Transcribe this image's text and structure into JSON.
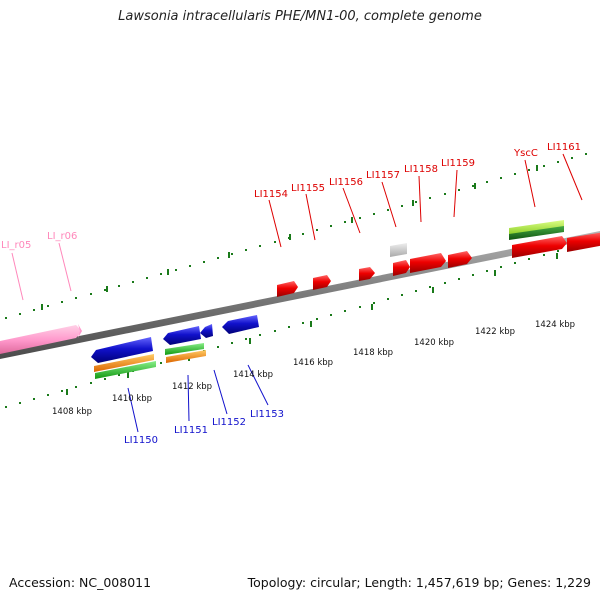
{
  "title": "Lawsonia intracellularis PHE/MN1-00, complete genome",
  "footer": {
    "accession": "Accession: NC_008011",
    "stats": "Topology: circular; Length: 1,457,619 bp; Genes: 1,229"
  },
  "colors": {
    "plus_gene": "#ee0000",
    "minus_gene": "#1111cc",
    "rna": "#ff99cc",
    "tick": "#1a7a1a",
    "backbone": "#888888",
    "orange_feature": "#ff8800",
    "green_feature": "#33cc33",
    "lime_feature": "#aaee44",
    "gray_feature": "#cccccc"
  },
  "scale": {
    "unit": "kbp",
    "labels": [
      {
        "kbp": 1408,
        "text": "1408 kbp"
      },
      {
        "kbp": 1410,
        "text": "1410 kbp"
      },
      {
        "kbp": 1412,
        "text": "1412 kbp"
      },
      {
        "kbp": 1414,
        "text": "1414 kbp"
      },
      {
        "kbp": 1416,
        "text": "1416 kbp"
      },
      {
        "kbp": 1418,
        "text": "1418 kbp"
      },
      {
        "kbp": 1420,
        "text": "1420 kbp"
      },
      {
        "kbp": 1422,
        "text": "1422 kbp"
      },
      {
        "kbp": 1424,
        "text": "1424 kbp"
      }
    ]
  },
  "gene_labels": {
    "plus": [
      "LI_r05",
      "LI_r06",
      "LI1154",
      "LI1155",
      "LI1156",
      "LI1157",
      "LI1158",
      "LI1159",
      "YscC",
      "LI1161"
    ],
    "minus": [
      "LI1150",
      "LI1151",
      "LI1152",
      "LI1153"
    ]
  }
}
